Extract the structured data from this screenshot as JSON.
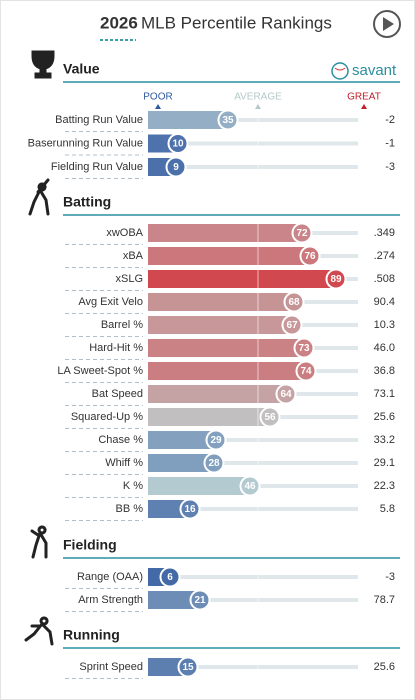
{
  "header": {
    "year": "2026",
    "title": "MLB Percentile Rankings"
  },
  "scale": {
    "poor": "POOR",
    "average": "AVERAGE",
    "great": "GREAT"
  },
  "logo": "savant",
  "sections": [
    {
      "title": "Value",
      "rows": [
        {
          "label": "Batting Run Value",
          "percentile": 35,
          "value": "-2"
        },
        {
          "label": "Baserunning Run Value",
          "percentile": 10,
          "value": "-1"
        },
        {
          "label": "Fielding Run Value",
          "percentile": 9,
          "value": "-3"
        }
      ]
    },
    {
      "title": "Batting",
      "rows": [
        {
          "label": "xwOBA",
          "percentile": 72,
          "value": ".349"
        },
        {
          "label": "xBA",
          "percentile": 76,
          "value": ".274"
        },
        {
          "label": "xSLG",
          "percentile": 89,
          "value": ".508"
        },
        {
          "label": "Avg Exit Velo",
          "percentile": 68,
          "value": "90.4"
        },
        {
          "label": "Barrel %",
          "percentile": 67,
          "value": "10.3"
        },
        {
          "label": "Hard-Hit %",
          "percentile": 73,
          "value": "46.0"
        },
        {
          "label": "LA Sweet-Spot %",
          "percentile": 74,
          "value": "36.8"
        },
        {
          "label": "Bat Speed",
          "percentile": 64,
          "value": "73.1"
        },
        {
          "label": "Squared-Up %",
          "percentile": 56,
          "value": "25.6"
        },
        {
          "label": "Chase %",
          "percentile": 29,
          "value": "33.2"
        },
        {
          "label": "Whiff %",
          "percentile": 28,
          "value": "29.1"
        },
        {
          "label": "K %",
          "percentile": 46,
          "value": "22.3"
        },
        {
          "label": "BB %",
          "percentile": 16,
          "value": "5.8"
        }
      ]
    },
    {
      "title": "Fielding",
      "rows": [
        {
          "label": "Range (OAA)",
          "percentile": 6,
          "value": "-3"
        },
        {
          "label": "Arm Strength",
          "percentile": 21,
          "value": "78.7"
        }
      ]
    },
    {
      "title": "Running",
      "rows": [
        {
          "label": "Sprint Speed",
          "percentile": 15,
          "value": "25.6"
        }
      ]
    }
  ]
}
